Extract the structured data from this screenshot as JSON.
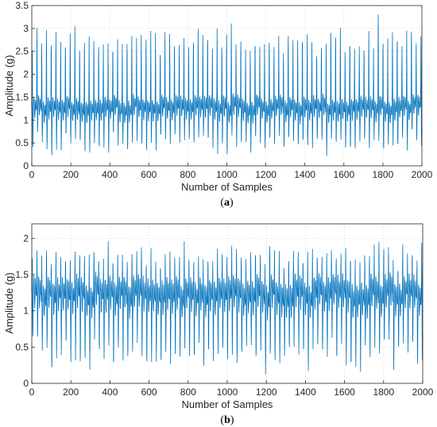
{
  "chart_data": [
    {
      "type": "line",
      "id": "a",
      "title": "",
      "caption_open": "(",
      "caption_letter": "a",
      "caption_close": ")",
      "xlabel": "Number of Samples",
      "ylabel": "Amplitude (g)",
      "xlim": [
        0,
        2000
      ],
      "ylim": [
        0,
        3.5
      ],
      "xticks": [
        0,
        200,
        400,
        600,
        800,
        1000,
        1200,
        1400,
        1600,
        1800,
        2000
      ],
      "yticks": [
        0,
        0.5,
        1,
        1.5,
        2,
        2.5,
        3,
        3.5
      ],
      "grid": true,
      "color": "#0072bd",
      "series": [
        {
          "sample_count": 2000,
          "beat_period_samples": 24.3,
          "baseline": 1.2,
          "typical_peak": 2.9,
          "max_peak": 3.42,
          "typical_trough": 0.45,
          "min_trough": 0.13
        }
      ]
    },
    {
      "type": "line",
      "id": "b",
      "title": "",
      "caption_open": "(",
      "caption_letter": "b",
      "caption_close": ")",
      "xlabel": "Number of Samples",
      "ylabel": "Amplitude (g)",
      "xlim": [
        0,
        2000
      ],
      "ylim": [
        0,
        2.2
      ],
      "xticks": [
        0,
        200,
        400,
        600,
        800,
        1000,
        1200,
        1400,
        1600,
        1800,
        2000
      ],
      "yticks": [
        0,
        0.5,
        1,
        1.5,
        2
      ],
      "grid": true,
      "color": "#0072bd",
      "series": [
        {
          "sample_count": 2000,
          "beat_period_samples": 24.3,
          "baseline": 1.15,
          "typical_peak": 1.85,
          "max_peak": 2.08,
          "typical_trough": 0.35,
          "min_trough": 0.15
        }
      ]
    }
  ]
}
